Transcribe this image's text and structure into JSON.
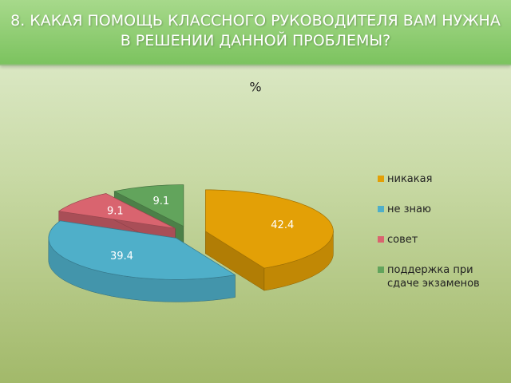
{
  "slide_title": "8. КАКАЯ ПОМОЩЬ КЛАССНОГО РУКОВОДИТЕЛЯ ВАМ НУЖНА В РЕШЕНИИ ДАННОЙ ПРОБЛЕМЫ?",
  "chart_data": {
    "type": "pie",
    "title": "%",
    "categories": [
      "никакая",
      "не знаю",
      "совет",
      "поддержка при сдаче экзаменов"
    ],
    "values": [
      42.4,
      39.4,
      9.1,
      9.1
    ],
    "colors": [
      "#e3a006",
      "#4fafc9",
      "#d9646f",
      "#62a45c"
    ],
    "legend": "right"
  }
}
